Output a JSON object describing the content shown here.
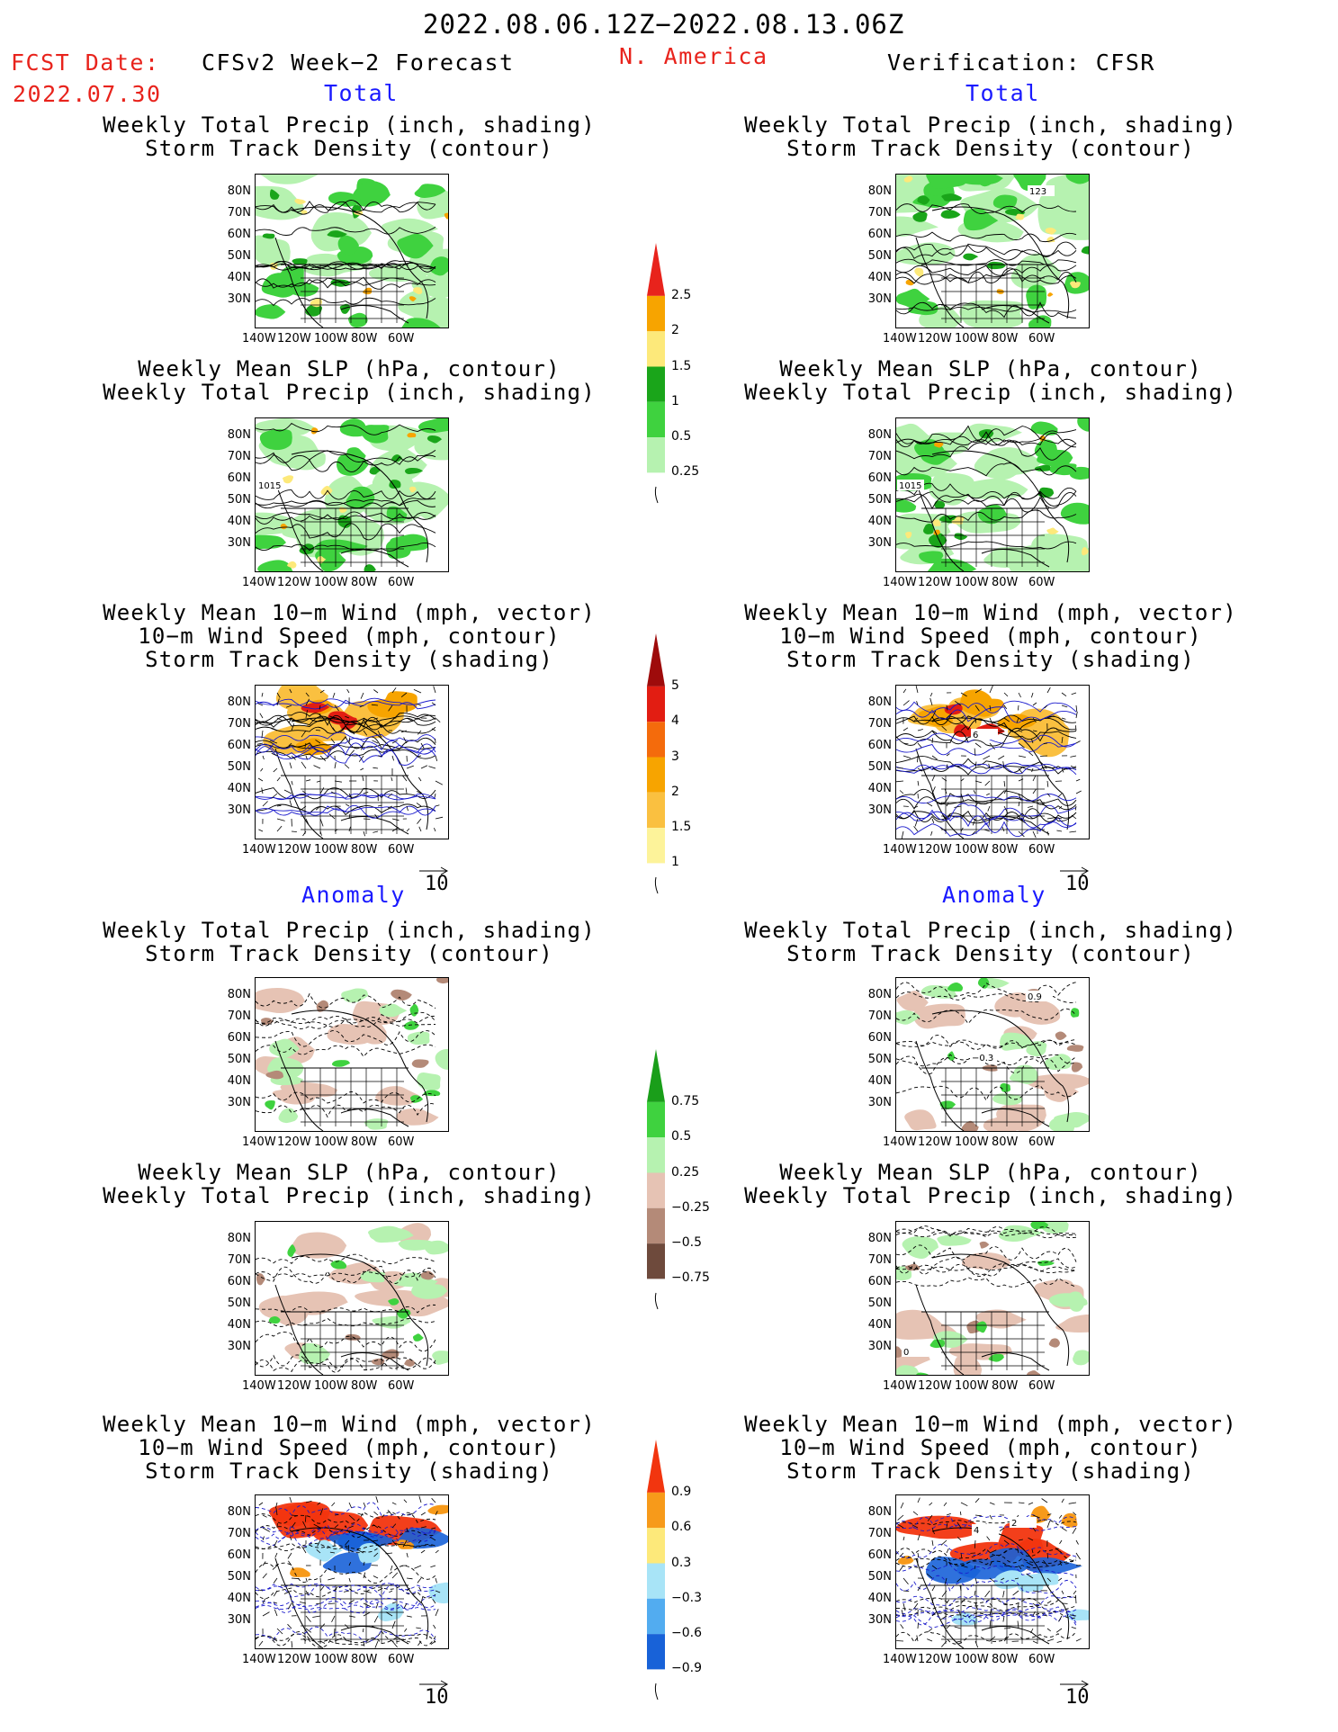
{
  "header": {
    "date_range": "2022.08.06.12Z−2022.08.13.06Z",
    "fcst_date_label": "FCST Date:",
    "fcst_date_value": "2022.07.30",
    "left_title": "CFSv2 Week−2 Forecast",
    "region": "N. America",
    "right_title": "Verification: CFSR"
  },
  "section_labels": {
    "total": "Total",
    "anomaly": "Anomaly"
  },
  "panel_titles": {
    "precip_storm": [
      "Weekly Total Precip (inch, shading)",
      "Storm Track Density (contour)"
    ],
    "slp_precip": [
      "Weekly Mean SLP (hPa, contour)",
      "Weekly Total Precip (inch, shading)"
    ],
    "wind_storm": [
      "Weekly Mean 10−m Wind (mph, vector)",
      "10−m Wind Speed (mph, contour)",
      "Storm Track Density (shading)"
    ]
  },
  "axes": {
    "lat_labels": [
      "80N",
      "70N",
      "60N",
      "50N",
      "40N",
      "30N"
    ],
    "lon_labels": [
      "140W",
      "120W",
      "100W",
      "80W",
      "60W"
    ]
  },
  "contour_labels": {
    "slp": "1015",
    "storm_total_verif": "123",
    "wind_total_verif": "6",
    "precip_anom_verif_a": "0.9",
    "precip_anom_verif_b": "−0.3",
    "slp_anom_verif": "0",
    "wind_anom_verif_a": "2",
    "wind_anom_verif_b": "4"
  },
  "vector_reference": "10",
  "colorbars": {
    "precip_total": {
      "labels": [
        "2.5",
        "2",
        "1.5",
        "1",
        "0.5",
        "0.25"
      ],
      "colors": [
        "#e8231c",
        "#f7a400",
        "#fde97a",
        "#1aa51a",
        "#3fd23f",
        "#b6f2b0"
      ]
    },
    "storm_total": {
      "labels": [
        "5",
        "4",
        "3",
        "2",
        "1.5",
        "1"
      ],
      "colors": [
        "#9e0b0b",
        "#e21d12",
        "#f46b0c",
        "#f7a400",
        "#fac040",
        "#fdf39a"
      ]
    },
    "precip_anom": {
      "labels": [
        "0.75",
        "0.5",
        "0.25",
        "−0.25",
        "−0.5",
        "−0.75"
      ],
      "colors": [
        "#1a9e1a",
        "#3fd23f",
        "#b6f2b0",
        "#e6c3b4",
        "#b48a78",
        "#6e4a3c"
      ]
    },
    "storm_anom": {
      "labels": [
        "0.9",
        "0.6",
        "0.3",
        "−0.3",
        "−0.6",
        "−0.9"
      ],
      "colors": [
        "#f2350f",
        "#f79a1a",
        "#fde97a",
        "#a8e4f7",
        "#52acf0",
        "#1862d8"
      ]
    }
  }
}
